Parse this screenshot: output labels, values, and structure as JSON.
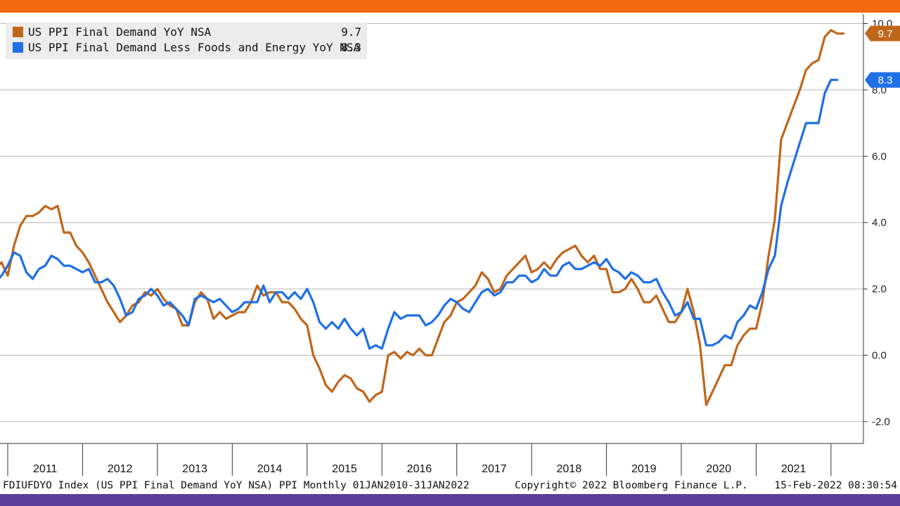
{
  "chart_data": {
    "type": "line",
    "x_start": "2010-11",
    "x_end": "2022-01",
    "ylim": [
      -2.5,
      10.3
    ],
    "y_ticks": [
      -2,
      0,
      2,
      4,
      6,
      8,
      10
    ],
    "y_tick_labels": [
      "-2.0",
      "0.0",
      "2.0",
      "4.0",
      "6.0",
      "8.0",
      "10.0"
    ],
    "x_tick_labels": [
      "2011",
      "2012",
      "2013",
      "2014",
      "2015",
      "2016",
      "2017",
      "2018",
      "2019",
      "2020",
      "2021"
    ],
    "grid": true,
    "legend_position": "top-left",
    "series": [
      {
        "name": "US PPI Final Demand YoY NSA",
        "last_value_label": "9.7",
        "color": "#c0661a",
        "values": [
          2.6,
          2.8,
          2.4,
          3.3,
          3.9,
          4.2,
          4.2,
          4.3,
          4.5,
          4.4,
          4.5,
          3.7,
          3.7,
          3.3,
          3.1,
          2.8,
          2.4,
          2.0,
          1.6,
          1.3,
          1.0,
          1.2,
          1.5,
          1.6,
          1.9,
          1.8,
          2.0,
          1.7,
          1.5,
          1.4,
          0.9,
          0.9,
          1.6,
          1.9,
          1.7,
          1.1,
          1.3,
          1.1,
          1.2,
          1.3,
          1.3,
          1.6,
          2.1,
          1.8,
          1.9,
          1.9,
          1.6,
          1.6,
          1.4,
          1.1,
          0.9,
          0.0,
          -0.4,
          -0.9,
          -1.1,
          -0.8,
          -0.6,
          -0.7,
          -1.0,
          -1.1,
          -1.4,
          -1.2,
          -1.1,
          0.0,
          0.1,
          -0.1,
          0.1,
          0.0,
          0.2,
          0.0,
          0.0,
          0.5,
          1.0,
          1.2,
          1.6,
          1.7,
          1.9,
          2.1,
          2.5,
          2.3,
          1.9,
          2.0,
          2.4,
          2.6,
          2.8,
          3.0,
          2.5,
          2.6,
          2.8,
          2.6,
          2.9,
          3.1,
          3.2,
          3.3,
          3.0,
          2.8,
          3.0,
          2.6,
          2.6,
          1.9,
          1.9,
          2.0,
          2.3,
          2.0,
          1.6,
          1.6,
          1.8,
          1.4,
          1.0,
          1.0,
          1.3,
          2.0,
          1.3,
          0.3,
          -1.5,
          -1.1,
          -0.7,
          -0.3,
          -0.3,
          0.3,
          0.6,
          0.8,
          0.8,
          1.6,
          3.0,
          4.1,
          6.5,
          7.0,
          7.5,
          8.0,
          8.6,
          8.8,
          8.9,
          9.6,
          9.8,
          9.7,
          9.7
        ]
      },
      {
        "name": "US PPI Final Demand Less Foods and Energy YoY NSA",
        "last_value_label": "8.3",
        "color": "#1f6fe5",
        "values": [
          2.2,
          2.4,
          2.7,
          3.1,
          3.0,
          2.5,
          2.3,
          2.6,
          2.7,
          3.0,
          2.9,
          2.7,
          2.7,
          2.6,
          2.5,
          2.6,
          2.2,
          2.2,
          2.3,
          2.1,
          1.7,
          1.2,
          1.3,
          1.7,
          1.8,
          2.0,
          1.8,
          1.5,
          1.6,
          1.4,
          1.2,
          0.9,
          1.7,
          1.8,
          1.7,
          1.6,
          1.7,
          1.5,
          1.3,
          1.4,
          1.6,
          1.6,
          1.6,
          2.1,
          1.6,
          1.9,
          1.9,
          1.7,
          1.9,
          1.7,
          2.0,
          1.6,
          1.0,
          0.8,
          1.0,
          0.8,
          1.1,
          0.8,
          0.6,
          0.8,
          0.2,
          0.3,
          0.2,
          0.8,
          1.3,
          1.1,
          1.2,
          1.2,
          1.2,
          0.9,
          1.0,
          1.2,
          1.5,
          1.7,
          1.6,
          1.4,
          1.3,
          1.6,
          1.9,
          2.0,
          1.8,
          1.9,
          2.2,
          2.2,
          2.4,
          2.4,
          2.2,
          2.3,
          2.6,
          2.4,
          2.4,
          2.7,
          2.8,
          2.6,
          2.6,
          2.7,
          2.8,
          2.7,
          2.9,
          2.6,
          2.5,
          2.3,
          2.5,
          2.4,
          2.2,
          2.2,
          2.3,
          1.9,
          1.6,
          1.2,
          1.3,
          1.6,
          1.1,
          1.1,
          0.3,
          0.3,
          0.4,
          0.6,
          0.5,
          1.0,
          1.2,
          1.5,
          1.4,
          1.9,
          2.6,
          3.0,
          4.5,
          5.2,
          5.8,
          6.4,
          7.0,
          7.0,
          7.0,
          7.9,
          8.3,
          8.3
        ]
      }
    ]
  },
  "footer": {
    "description": "FDIUFDYO Index (US PPI Final Demand YoY NSA) PPI  Monthly 01JAN2010-31JAN2022",
    "copyright": "Copyright© 2022 Bloomberg Finance L.P.",
    "timestamp": "15-Feb-2022 08:30:54"
  },
  "colors": {
    "top_bar": "#f26a0d",
    "bottom_bar": "#5a3e98"
  }
}
